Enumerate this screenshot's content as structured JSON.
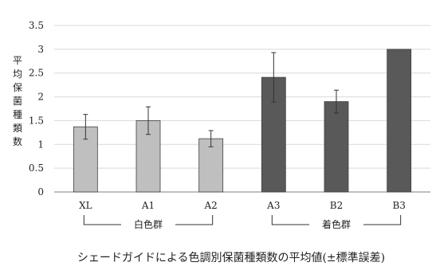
{
  "chart_data": {
    "type": "bar",
    "title": "",
    "caption": "シェードガイドによる色調別保菌種類数の平均値(±標準誤差)",
    "ylabel": "平均保菌種類数",
    "xlabel": "",
    "ylim": [
      0,
      3.5
    ],
    "yticks": [
      0,
      0.5,
      1,
      1.5,
      2,
      2.5,
      3,
      3.5
    ],
    "ytick_labels": [
      "0",
      "0.5",
      "1",
      "1.5",
      "2",
      "2.5",
      "3",
      "3.5"
    ],
    "grid": true,
    "legend": "none",
    "categories": [
      "XL",
      "A1",
      "A2",
      "A3",
      "B2",
      "B3"
    ],
    "values": [
      1.37,
      1.5,
      1.12,
      2.41,
      1.9,
      3.0
    ],
    "errors": [
      0.26,
      0.29,
      0.17,
      0.52,
      0.24,
      0.0
    ],
    "bar_colors": [
      "#bfbfbf",
      "#bfbfbf",
      "#bfbfbf",
      "#595959",
      "#595959",
      "#595959"
    ],
    "groups": [
      {
        "label": "白色群",
        "categories": [
          "XL",
          "A1",
          "A2"
        ]
      },
      {
        "label": "着色群",
        "categories": [
          "A3",
          "B2",
          "B3"
        ]
      }
    ]
  },
  "colors": {
    "light_bar": "#bfbfbf",
    "dark_bar": "#595959",
    "grid": "#d9d9d9",
    "axis": "#7f7f7f"
  }
}
